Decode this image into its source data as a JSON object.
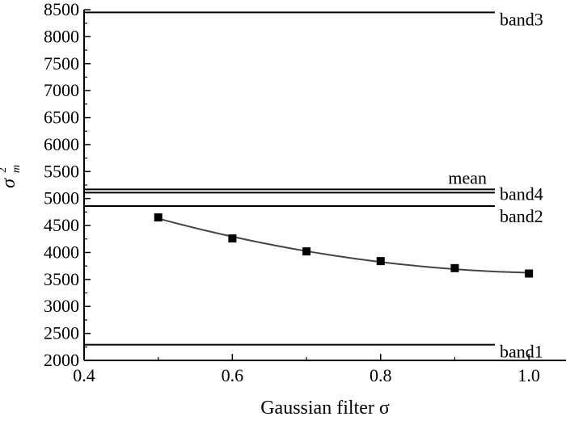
{
  "chart_data": {
    "type": "scatter",
    "xlabel": "Gaussian filter σ",
    "ylabel": {
      "base": "σ",
      "sup": "2",
      "sub": "m"
    },
    "xlim": [
      0.4,
      1.05
    ],
    "ylim": [
      2000,
      8500
    ],
    "x_ticks": [
      "0.4",
      "0.6",
      "0.8",
      "1.0"
    ],
    "y_ticks": [
      "2000",
      "2500",
      "3000",
      "3500",
      "4000",
      "4500",
      "5000",
      "5500",
      "6000",
      "6500",
      "7000",
      "7500",
      "8000",
      "8500"
    ],
    "series": [
      {
        "x": [
          0.5,
          0.6,
          0.7,
          0.8,
          0.9,
          1.0
        ],
        "y": [
          4650,
          4260,
          4020,
          3840,
          3710,
          3610
        ],
        "marker": "square",
        "fit_line": true
      }
    ],
    "reference_lines": [
      {
        "label": "band3",
        "y": 8450
      },
      {
        "label": "mean",
        "y": 5170
      },
      {
        "label": "band4",
        "y": 5110
      },
      {
        "label": "band2",
        "y": 4860
      },
      {
        "label": "band1",
        "y": 2290
      }
    ],
    "grid": false,
    "colors": {
      "axis": "#000000",
      "lines": "#000000",
      "markers": "#000000",
      "fit": "#444444"
    }
  }
}
